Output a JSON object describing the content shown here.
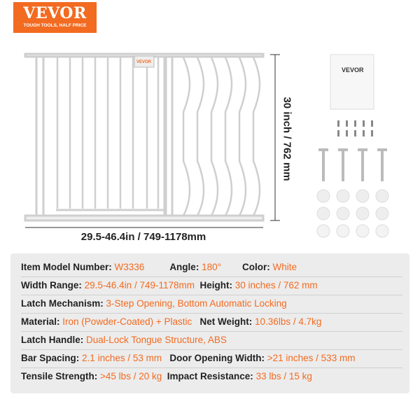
{
  "brand": {
    "name": "VEVOR",
    "tagline": "TOUGH TOOLS, HALF PRICE",
    "color": "#f26b21"
  },
  "dimensions": {
    "height": "30 inch / 762 mm",
    "width": "29.5-46.4in /  749-1178mm"
  },
  "manual_brand": "VEVOR",
  "specs": [
    [
      {
        "label": "Item Model Number:",
        "value": "W3336"
      },
      {
        "label": "Angle:",
        "value": "180°"
      },
      {
        "label": "Color:",
        "value": "White"
      }
    ],
    [
      {
        "label": "Width Range:",
        "value": "29.5-46.4in /  749-1178mm"
      },
      {
        "label": "Height:",
        "value": "30 inches / 762 mm"
      }
    ],
    [
      {
        "label": "Latch Mechanism:",
        "value": "3-Step Opening, Bottom Automatic Locking"
      }
    ],
    [
      {
        "label": "Material:",
        "value": "Iron (Powder-Coated) + Plastic"
      },
      {
        "label": "Net Weight:",
        "value": "10.36lbs / 4.7kg"
      }
    ],
    [
      {
        "label": "Latch Handle:",
        "value": "Dual-Lock Tongue Structure, ABS"
      }
    ],
    [
      {
        "label": "Bar Spacing:",
        "value": "2.1 inches / 53 mm"
      },
      {
        "label": "Door Opening Width:",
        "value": ">21 inches / 533 mm"
      }
    ],
    [
      {
        "label": "Tensile Strength:",
        "value": ">45 lbs / 20 kg"
      },
      {
        "label": "Impact Resistance:",
        "value": "33 lbs / 15 kg"
      }
    ]
  ]
}
